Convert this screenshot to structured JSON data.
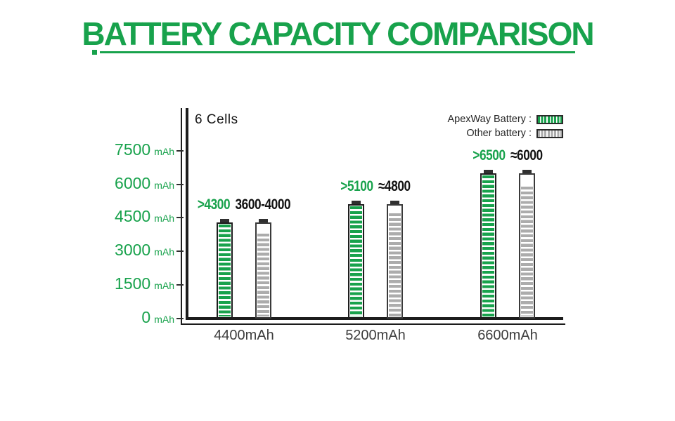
{
  "title": "BATTERY CAPACITY COMPARISON",
  "axis": {
    "cells_label": "6 Cells",
    "unit": "mAh",
    "yticks": [
      7500,
      6000,
      4500,
      3000,
      1500,
      0
    ]
  },
  "legend": {
    "apexway_label": "ApexWay Battery :",
    "other_label": "Other battery :"
  },
  "colors": {
    "green": "#18A24C",
    "gray": "#ACACAC",
    "cap": "#303030",
    "axis": "#1C1C1C"
  },
  "groups": [
    {
      "category": "4400mAh",
      "apex_annotation": ">4300",
      "other_annotation": "3600-4000",
      "apex_value": 4300,
      "other_value": 3900
    },
    {
      "category": "5200mAh",
      "apex_annotation": ">5100",
      "other_annotation": "≈4800",
      "apex_value": 5100,
      "other_value": 4800
    },
    {
      "category": "6600mAh",
      "apex_annotation": ">6500",
      "other_annotation": "≈6000",
      "apex_value": 6500,
      "other_value": 6000
    }
  ],
  "chart_data": {
    "type": "bar",
    "title": "BATTERY CAPACITY COMPARISON",
    "subtitle": "6 Cells",
    "categories": [
      "4400mAh",
      "5200mAh",
      "6600mAh"
    ],
    "series": [
      {
        "name": "ApexWay Battery",
        "values": [
          4300,
          5100,
          6500
        ],
        "data_labels": [
          ">4300",
          ">5100",
          ">6500"
        ],
        "color": "#18A24C"
      },
      {
        "name": "Other battery",
        "values": [
          3900,
          4800,
          6000
        ],
        "data_labels": [
          "3600-4000",
          "≈4800",
          "≈6000"
        ],
        "color": "#ACACAC"
      }
    ],
    "ylabel": "mAh",
    "ylim": [
      0,
      7500
    ],
    "yticks": [
      0,
      1500,
      3000,
      4500,
      6000,
      7500
    ],
    "legend_position": "top-right",
    "grid": false
  }
}
